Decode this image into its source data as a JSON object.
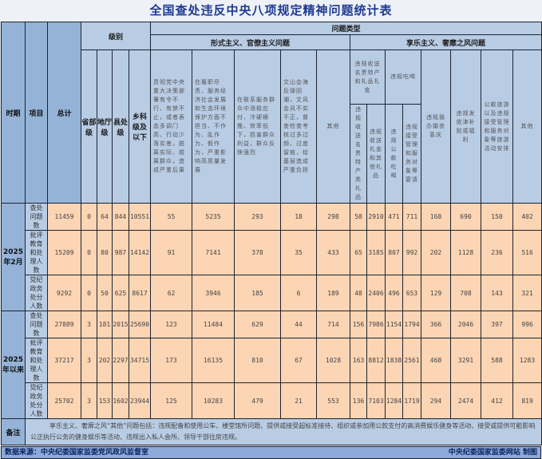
{
  "title": "全国查处违反中央八项规定精神问题统计表",
  "headers": {
    "period": "时期",
    "item": "项目",
    "total": "总计",
    "level": "级别",
    "levels": [
      "省部级",
      "地厅级",
      "县处级",
      "乡科级及以下"
    ],
    "problem_type": "问题类型",
    "formalism": "形式主义、官僚主义问题",
    "formalism_items": [
      "贯彻党中央重大决策部署有令不行、有禁不止，或者表态多调门高、行动少落实差，脱离实际、脱离群众，造成严重后果",
      "在履职尽责、服务经济社会发展和生态环境保护方面不担当、不作为、乱作为、假作为，严重影响高质量发展",
      "在联系服务群众中消极应付、冷硬横推、效率低下，损害群众利益，群众反映强烈",
      "文山会海反弹回潮，文风会风不实不正，督查检查考核过多过频、过度留痕，给基层造成严重负担",
      "其他"
    ],
    "hedonism": "享乐主义、奢靡之风问题",
    "gifts": "违规收送名贵特产和礼品礼金",
    "gifts_sub": [
      "违规收送名贵特产类礼品",
      "违规收送礼金和其他礼品"
    ],
    "dining": "违规吃喝",
    "dining_sub": [
      "违规公款吃喝",
      "违规接受管理和服务对象等宴请"
    ],
    "hedonism_items": [
      "违规操办婚丧喜庆",
      "违规发放津补贴或福利",
      "公款旅游以及违规接受管理和服务对象等旅游活动安排",
      "其他"
    ]
  },
  "groups": [
    {
      "period": "2025年2月",
      "rows": [
        {
          "item": "查处问题数",
          "values": [
            "11459",
            "0",
            "64",
            "844",
            "10551",
            "55",
            "5235",
            "293",
            "18",
            "298",
            "58",
            "2910",
            "471",
            "711",
            "168",
            "690",
            "150",
            "402"
          ]
        },
        {
          "item": "批评教育和处理人数",
          "values": [
            "15209",
            "0",
            "80",
            "987",
            "14142",
            "91",
            "7141",
            "378",
            "35",
            "433",
            "65",
            "3185",
            "807",
            "992",
            "202",
            "1128",
            "236",
            "516"
          ]
        },
        {
          "item": "党纪政务处分人数",
          "values": [
            "9292",
            "0",
            "50",
            "625",
            "8617",
            "62",
            "3946",
            "185",
            "6",
            "189",
            "48",
            "2406",
            "496",
            "653",
            "129",
            "708",
            "143",
            "321"
          ]
        }
      ]
    },
    {
      "period": "2025年以来",
      "rows": [
        {
          "item": "查处问题数",
          "values": [
            "27889",
            "3",
            "181",
            "2015",
            "25690",
            "123",
            "11484",
            "629",
            "44",
            "714",
            "156",
            "7986",
            "1154",
            "1794",
            "366",
            "2046",
            "397",
            "996"
          ]
        },
        {
          "item": "批评教育和处理人数",
          "values": [
            "37217",
            "3",
            "202",
            "2297",
            "34715",
            "173",
            "16135",
            "810",
            "67",
            "1028",
            "163",
            "8812",
            "1838",
            "2561",
            "468",
            "3291",
            "588",
            "1283"
          ]
        },
        {
          "item": "党纪政务处分人数",
          "values": [
            "25702",
            "3",
            "153",
            "1602",
            "23944",
            "125",
            "10283",
            "479",
            "21",
            "553",
            "136",
            "7103",
            "1284",
            "1719",
            "294",
            "2474",
            "412",
            "819"
          ]
        }
      ]
    }
  ],
  "note": {
    "label": "备注",
    "text": "享乐主义、奢靡之风“其他”问题包括：违规配备和使用公车、楼堂馆所问题、提供或接受超标准接待、组织或参加用公款支付的高消费娱乐健身等活动、接受或提供可能影响公正执行公务的健身娱乐等活动、违规出入私人会所、领导干部住房违规。"
  },
  "footer": {
    "source": "数据来源：中央纪委国家监委党风政风监督室",
    "credit": "中央纪委国家监委网站 制图"
  },
  "colors": {
    "header": "#b8cce4",
    "label": "#95b3d7",
    "data": "#fcd5b4",
    "title": "#1f3a93"
  }
}
